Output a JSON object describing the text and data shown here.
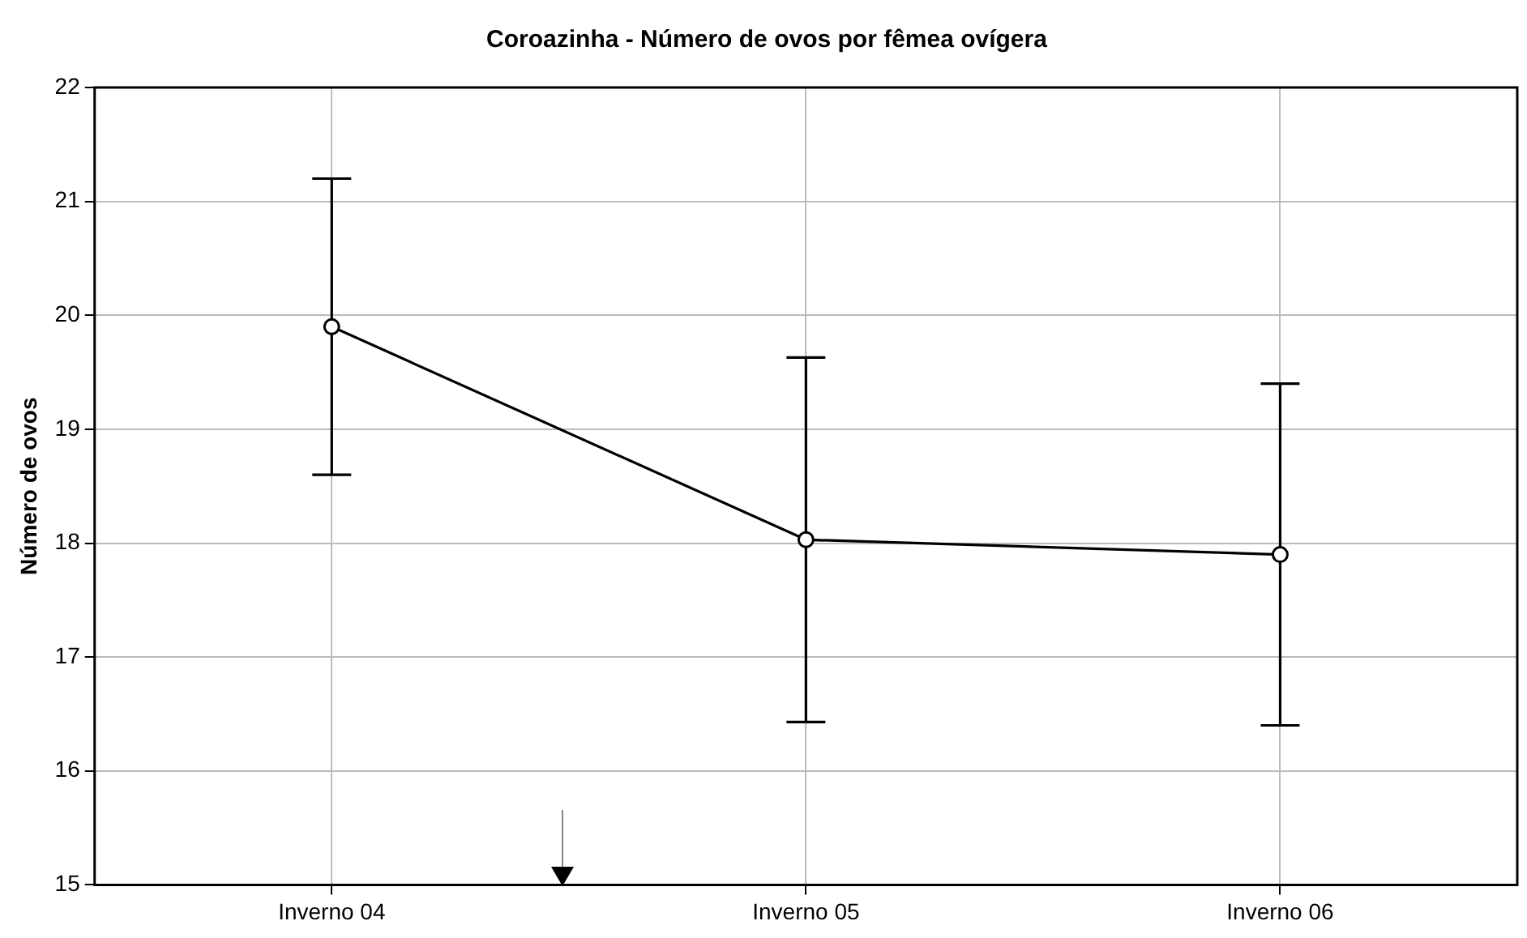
{
  "chart_data": {
    "type": "line",
    "title": "Coroazinha - Número de ovos por fêmea ovígera",
    "ylabel": "Número de ovos",
    "categories": [
      "Inverno 04",
      "Inverno 05",
      "Inverno 06"
    ],
    "series": [
      {
        "color": "#000000",
        "values": [
          19.9,
          18.03,
          17.9
        ],
        "errors": [
          1.3,
          1.6,
          1.5
        ]
      }
    ],
    "ylim": [
      15,
      22
    ],
    "yticks": [
      15,
      16,
      17,
      18,
      19,
      20,
      21,
      22
    ],
    "grid": true,
    "legend": false,
    "marker": "circle",
    "line_style": "solid"
  }
}
